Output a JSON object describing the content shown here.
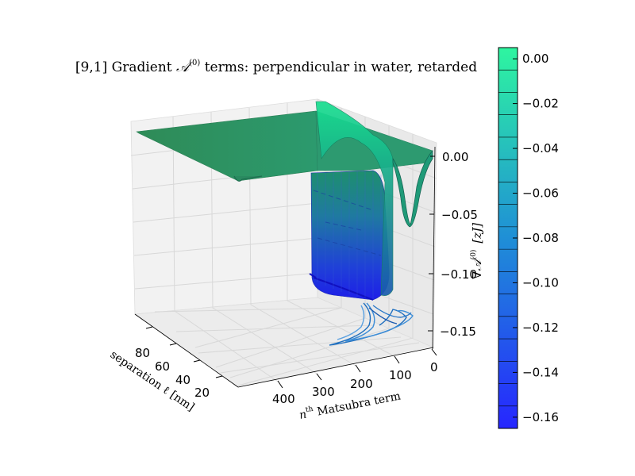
{
  "chart_data": {
    "type": "surface3d",
    "title_prefix": "[9,1] Gradient ",
    "title_symbol": "𝒜",
    "title_superscript": "(0)",
    "title_suffix": " terms: perpendicular in water, retarded",
    "x_axis": {
      "label_main": "n",
      "label_sup": "th",
      "label_rest": " Matsubra term",
      "ticks": [
        0,
        100,
        200,
        300,
        400
      ],
      "range": [
        0,
        500
      ]
    },
    "y_axis": {
      "label_text": "separation  ℓ [nm]",
      "ticks": [
        20,
        40,
        60,
        80
      ],
      "range": [
        0,
        100
      ]
    },
    "z_axis": {
      "label_nabla": "∇",
      "label_symbol": "𝒜",
      "label_sup": "(0)",
      "label_unit": "[zJ]",
      "ticks": [
        "0.00",
        "−0.05",
        "−0.10",
        "−0.15"
      ],
      "tick_values": [
        0.0,
        -0.05,
        -0.1,
        -0.15
      ],
      "range": [
        -0.17,
        0.01
      ]
    },
    "colorbar": {
      "ticks": [
        "0.00",
        "−0.02",
        "−0.04",
        "−0.06",
        "−0.08",
        "−0.10",
        "−0.12",
        "−0.14",
        "−0.16"
      ],
      "tick_values": [
        0.0,
        -0.02,
        -0.04,
        -0.06,
        -0.08,
        -0.1,
        -0.12,
        -0.14,
        -0.16
      ],
      "range": [
        -0.165,
        0.005
      ],
      "color_top": "#2ef5a0",
      "color_bottom": "#2626ff"
    },
    "surface_color_top": "#2e8b57",
    "surface_color_bottom": "#1a2dd8",
    "contour_color": "#1f6fbf"
  }
}
